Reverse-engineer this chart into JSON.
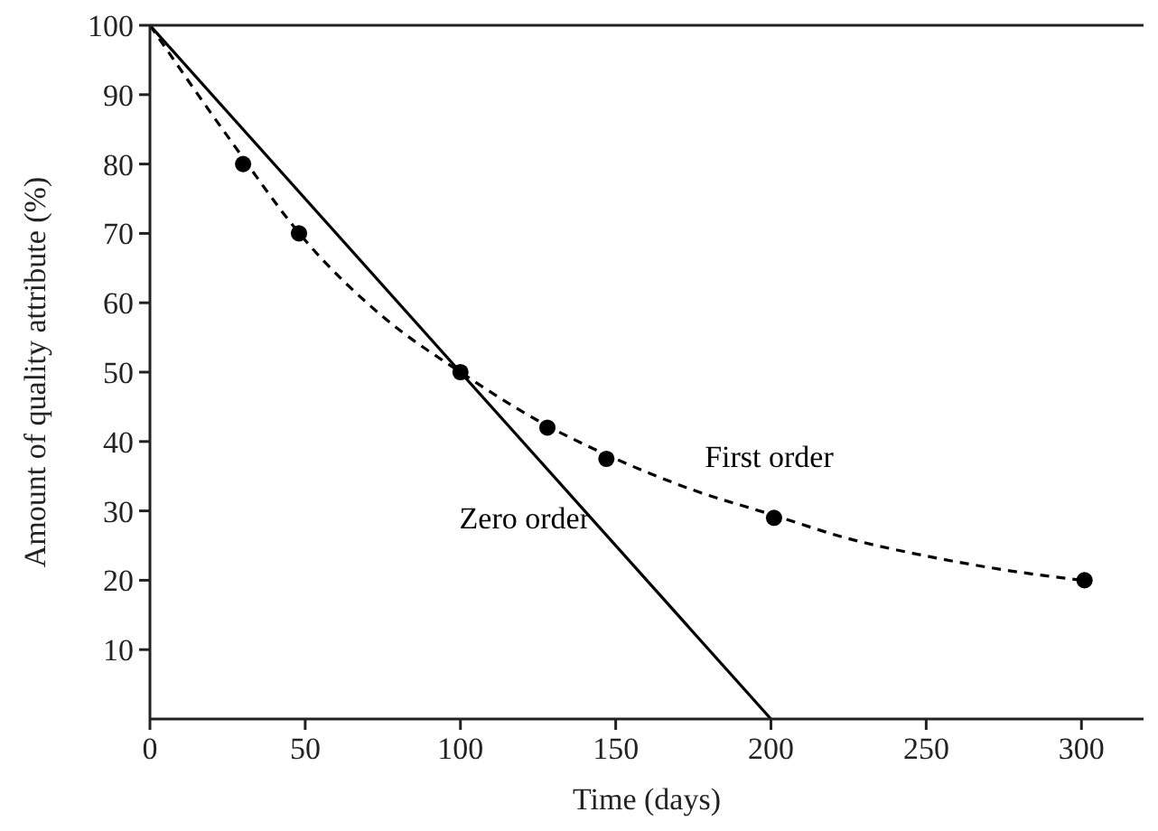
{
  "chart_data": {
    "type": "line",
    "xlabel": "Time (days)",
    "ylabel": "Amount of quality attribute (%)",
    "xlim": [
      0,
      320
    ],
    "xticks": [
      0,
      50,
      100,
      150,
      200,
      250,
      300
    ],
    "ylim": [
      0,
      100
    ],
    "yticks": [
      10,
      20,
      30,
      40,
      50,
      60,
      70,
      80,
      90,
      100
    ],
    "grid": false,
    "legend": false,
    "series": [
      {
        "name": "Zero order",
        "color": "#000000",
        "line_style": "solid",
        "marker": "none",
        "x": [
          0,
          200
        ],
        "values": [
          100,
          0
        ]
      },
      {
        "name": "First order",
        "color": "#000000",
        "line_style": "dashed",
        "marker": "none",
        "x": [
          0,
          25,
          50,
          75,
          100,
          125,
          150,
          175,
          200,
          225,
          250,
          275,
          300
        ],
        "values": [
          100,
          84,
          69,
          58,
          50,
          43,
          37.5,
          33,
          29.5,
          26,
          23.5,
          21.5,
          20
        ]
      },
      {
        "type": "scatter",
        "color": "#000000",
        "marker": "circle",
        "x": [
          30,
          48,
          100,
          128,
          147,
          201,
          301
        ],
        "values": [
          80,
          70,
          50,
          42,
          37.5,
          29,
          20
        ]
      }
    ]
  }
}
